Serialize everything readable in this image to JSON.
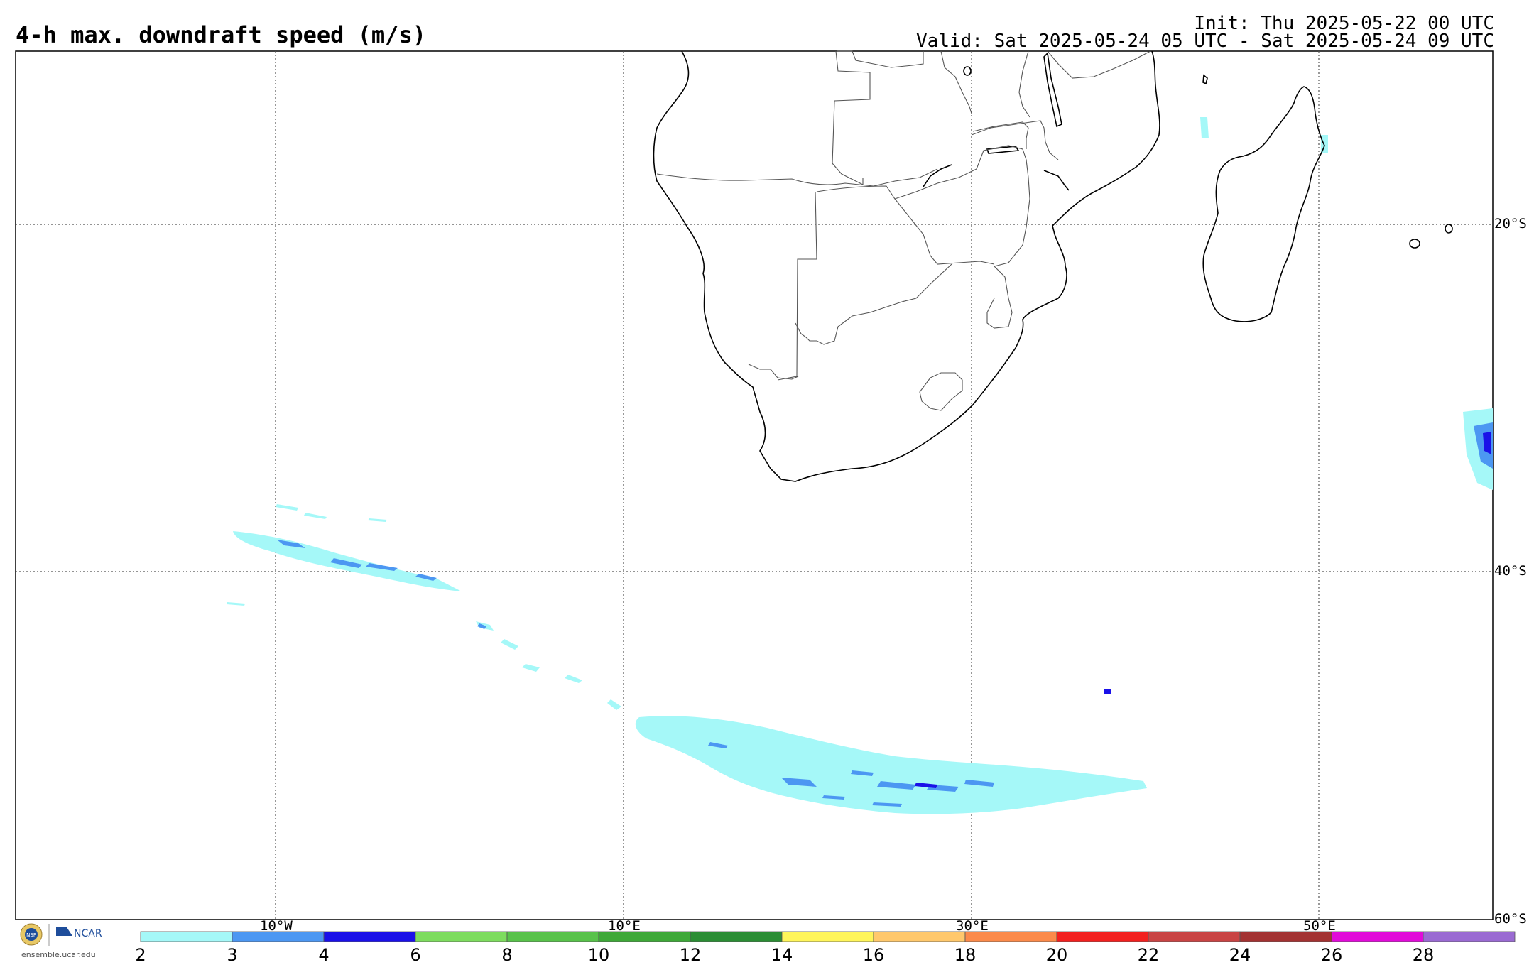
{
  "title": "4-h max. downdraft speed (m/s)",
  "init": "Init: Thu 2025-05-22 00 UTC",
  "valid": "Valid: Sat 2025-05-24 05 UTC - Sat 2025-05-24 09 UTC",
  "map": {
    "lon_labels": [
      "10°W",
      "10°E",
      "30°E",
      "50°E"
    ],
    "lat_labels": [
      "20°S",
      "40°S",
      "60°S"
    ]
  },
  "colorbar": {
    "ticks": [
      "2",
      "3",
      "4",
      "6",
      "8",
      "10",
      "12",
      "14",
      "16",
      "18",
      "20",
      "22",
      "24",
      "26",
      "28"
    ],
    "colors": [
      "#a5f8f8",
      "#4c97f2",
      "#1a10e8",
      "#7ddc5e",
      "#58c24a",
      "#3ea838",
      "#2b8d34",
      "#fff55a",
      "#ffc86c",
      "#fb8a4a",
      "#f2201f",
      "#c94444",
      "#a33232",
      "#e10bd9",
      "#9a6ad2"
    ]
  },
  "logo": {
    "nsf": "NSF",
    "ncar": "NCAR",
    "site": "ensemble.ucar.edu"
  }
}
